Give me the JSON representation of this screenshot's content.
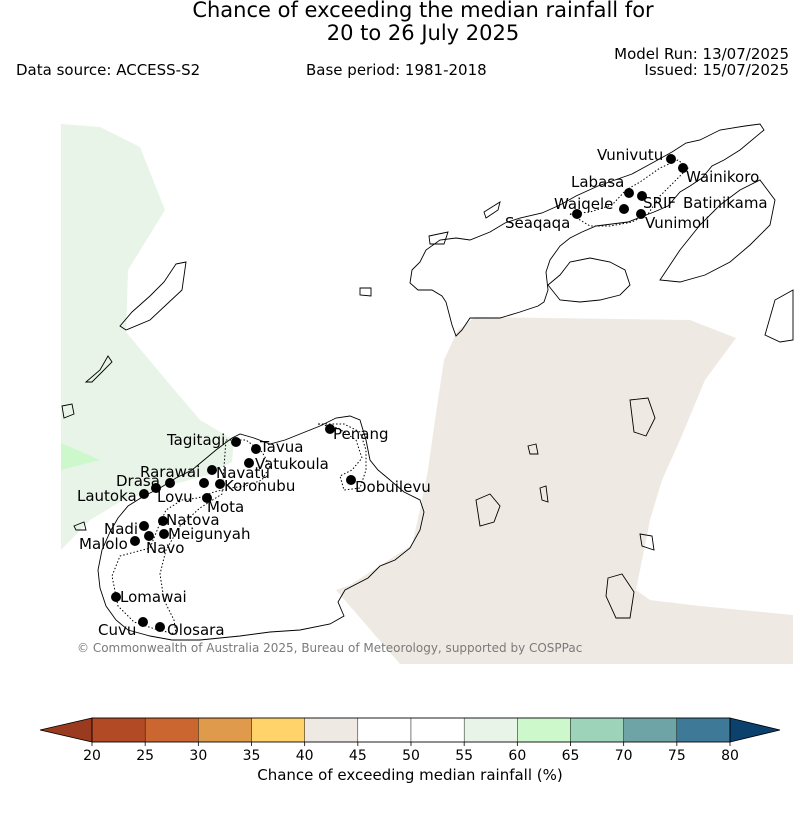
{
  "title": {
    "line1": "Chance of exceeding the median rainfall for",
    "line2": "20 to 26 July 2025"
  },
  "meta": {
    "data_source": "Data source: ACCESS-S2",
    "base_period": "Base period: 1981-2018",
    "model_run": "Model Run: 13/07/2025",
    "issued": "Issued: 15/07/2025"
  },
  "copyright": "© Commonwealth of Australia 2025, Bureau of Meteorology, supported by COSPPac",
  "stations": [
    "Vunivutu",
    "Wainikoro",
    "Labasa",
    "Waiqele",
    "SRIF",
    "Batinikama",
    "Seaqaqa",
    "Vunimoli",
    "Penang",
    "Tagitagi",
    "Tavua",
    "Vatukoula",
    "Rarawai",
    "Navatu",
    "Koronubu",
    "Drasa",
    "Lautoka",
    "Lovu",
    "Mota",
    "Dobuilevu",
    "Natova",
    "Nadi",
    "Meigunyah",
    "Malolo",
    "Navo",
    "Lomawai",
    "Cuvu",
    "Olosara"
  ],
  "colorbar": {
    "label": "Chance of exceeding median rainfall (%)",
    "ticks": [
      "20",
      "25",
      "30",
      "35",
      "40",
      "45",
      "50",
      "55",
      "60",
      "65",
      "70",
      "75",
      "80"
    ],
    "colors": [
      "#b34a26",
      "#cc6631",
      "#e09a4b",
      "#ffd26a",
      "#efe9e3",
      "#ffffff",
      "#ffffff",
      "#e8f4e8",
      "#ccf8cc",
      "#9dd3b9",
      "#6ea4a6",
      "#3e7997",
      "#134c7c"
    ],
    "under_color": "#9a3a1e",
    "over_color": "#0c416e"
  },
  "legend_colors": {
    "light_green": "#e8f4e8",
    "mid_green": "#ccf8cc",
    "beige": "#efe9e3"
  }
}
